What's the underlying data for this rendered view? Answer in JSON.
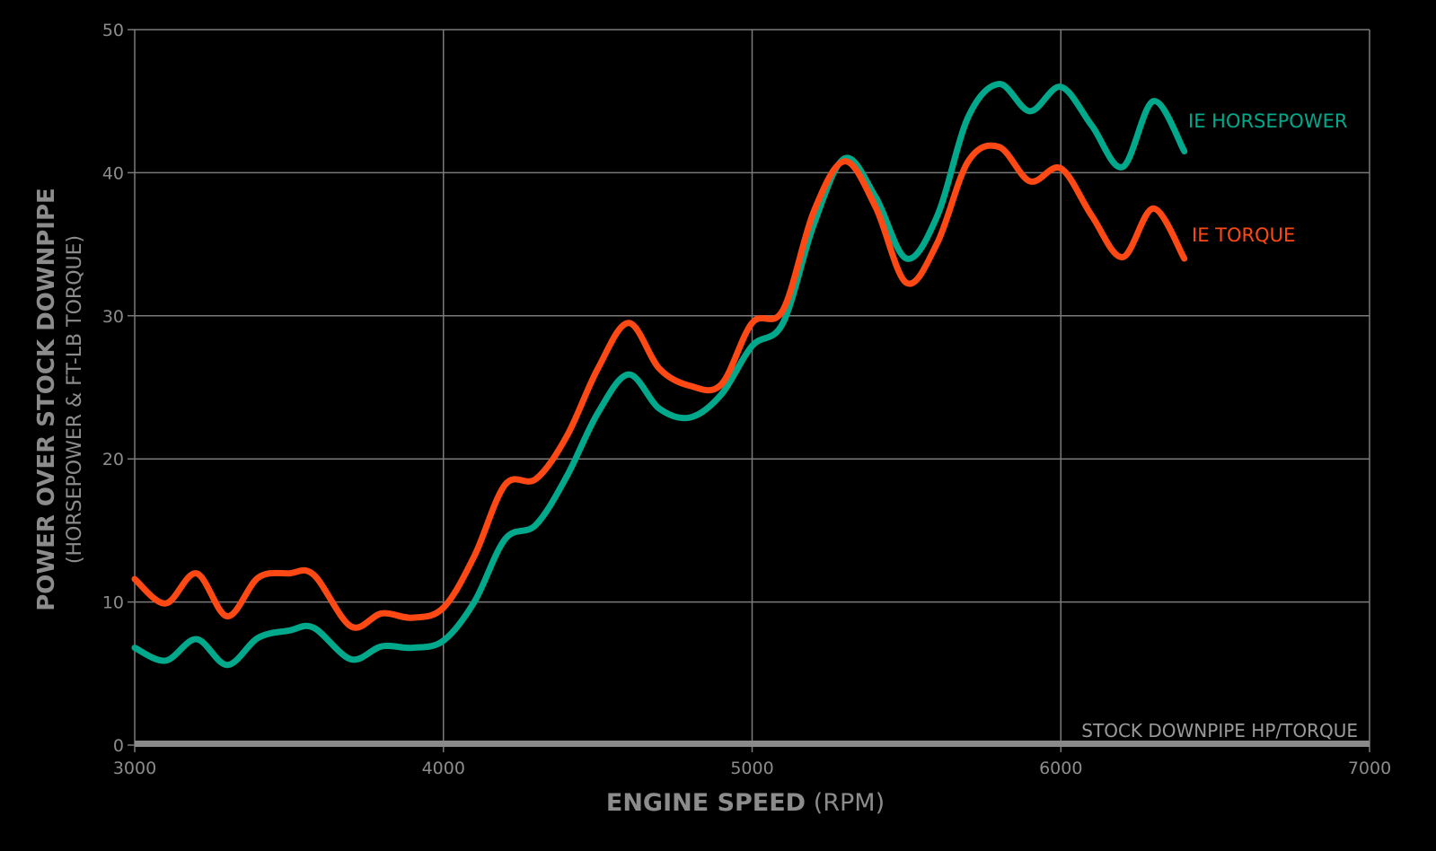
{
  "chart_data": {
    "type": "line",
    "title": "",
    "xlabel": "ENGINE SPEED",
    "xlabel_unit": "(RPM)",
    "ylabel": "POWER OVER STOCK DOWNPIPE",
    "ylabel_sub": "(HORSEPOWER & FT-LB TORQUE)",
    "xlim": [
      3000,
      7000
    ],
    "ylim": [
      0,
      50
    ],
    "xticks": [
      "3000",
      "4000",
      "5000",
      "6000",
      "7000"
    ],
    "yticks": [
      "0",
      "10",
      "20",
      "30",
      "40",
      "50"
    ],
    "grid": true,
    "x": [
      3000,
      3100,
      3200,
      3300,
      3400,
      3500,
      3580,
      3700,
      3800,
      3900,
      4000,
      4100,
      4200,
      4300,
      4400,
      4500,
      4600,
      4700,
      4800,
      4900,
      5000,
      5100,
      5200,
      5300,
      5400,
      5500,
      5600,
      5700,
      5800,
      5900,
      6000,
      6100,
      6200,
      6300,
      6400
    ],
    "series": [
      {
        "name": "IE HORSEPOWER",
        "color": "#00a98b",
        "values": [
          6.8,
          5.9,
          7.4,
          5.6,
          7.5,
          8.0,
          8.2,
          6.0,
          6.9,
          6.8,
          7.3,
          10.0,
          14.4,
          15.4,
          18.8,
          23.2,
          25.9,
          23.5,
          22.9,
          24.5,
          27.9,
          29.5,
          36.4,
          41.0,
          38.3,
          34.0,
          37.0,
          43.9,
          46.2,
          44.3,
          46.0,
          43.3,
          40.4,
          45.0,
          41.5
        ]
      },
      {
        "name": "IE TORQUE",
        "color": "#ff4914",
        "values": [
          11.6,
          9.9,
          12.0,
          9.0,
          11.7,
          12.0,
          11.9,
          8.3,
          9.2,
          8.9,
          9.6,
          13.2,
          18.2,
          18.6,
          21.6,
          26.3,
          29.5,
          26.3,
          25.1,
          25.2,
          29.5,
          30.4,
          37.3,
          40.8,
          37.6,
          32.3,
          35.1,
          40.8,
          41.8,
          39.4,
          40.3,
          37.0,
          34.1,
          37.5,
          34.0
        ]
      }
    ],
    "baseline": {
      "name": "STOCK DOWNPIPE HP/TORQUE",
      "value": 0,
      "color": "#8a8a8a"
    },
    "legend": "inline-right"
  }
}
